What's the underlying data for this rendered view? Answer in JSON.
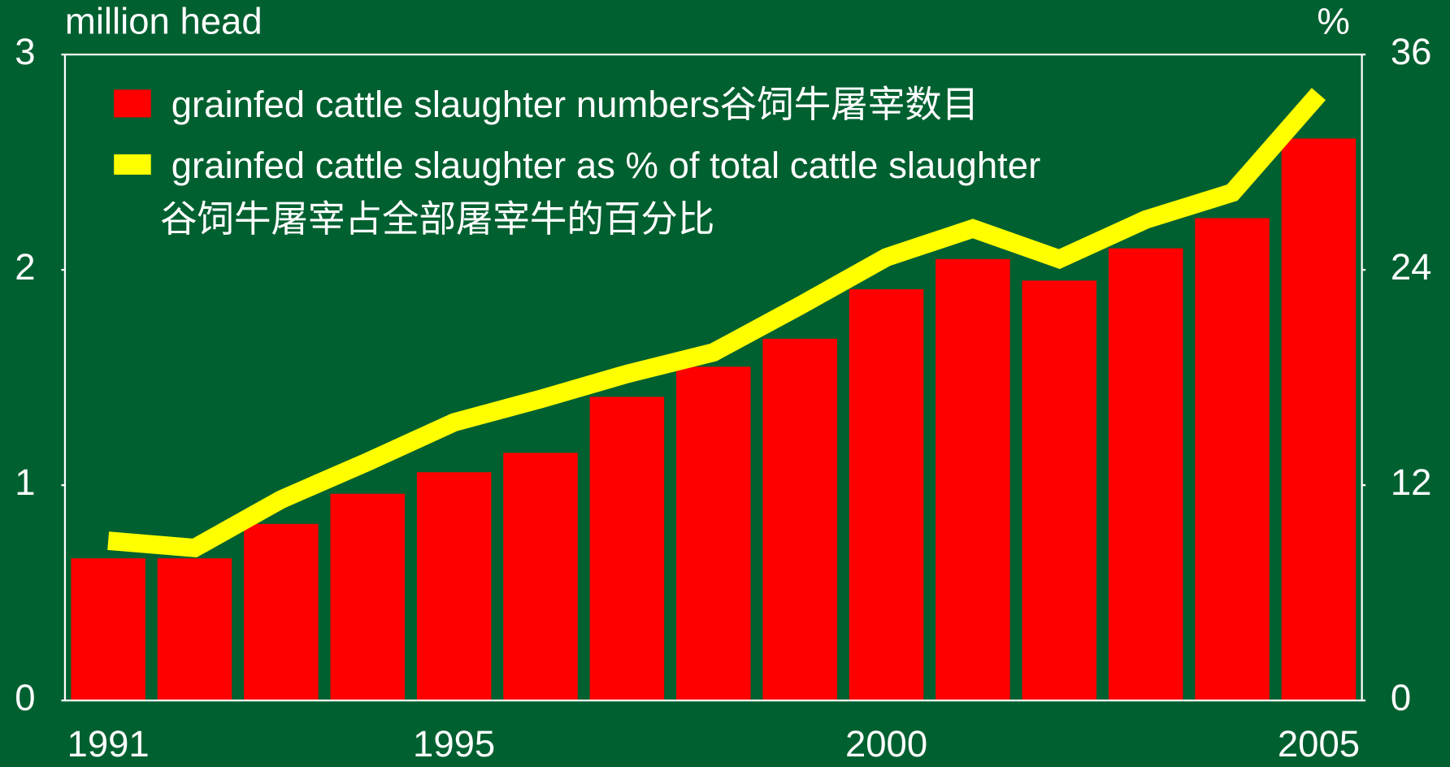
{
  "chart_data": {
    "type": "bar",
    "y_label": "million head",
    "y2_label": "%",
    "categories": [
      "1991",
      null,
      null,
      null,
      "1995",
      null,
      null,
      null,
      null,
      "2000",
      null,
      null,
      null,
      null,
      "2005"
    ],
    "series": [
      {
        "name": "grainfed cattle slaughter numbers谷饲牛屠宰数目",
        "type": "bar",
        "color": "#ff0000",
        "values": [
          0.66,
          0.66,
          0.82,
          0.96,
          1.06,
          1.15,
          1.41,
          1.55,
          1.68,
          1.91,
          2.05,
          1.95,
          2.1,
          2.24,
          2.61
        ]
      },
      {
        "name": "grainfed cattle slaughter as % of total cattle slaughter\n谷饲牛屠宰占全部屠宰牛的百分比",
        "type": "line",
        "axis": "y2",
        "color": "#ffff00",
        "values": [
          8.9,
          8.5,
          11.2,
          13.3,
          15.5,
          16.8,
          18.2,
          19.4,
          22.0,
          24.7,
          26.3,
          24.6,
          26.8,
          28.3,
          33.8
        ]
      }
    ],
    "ylim": [
      0,
      3
    ],
    "yticks": [
      0,
      1,
      2,
      3
    ],
    "y2lim": [
      0,
      36
    ],
    "y2ticks": [
      0,
      12,
      24,
      36
    ],
    "legend": "upper left"
  }
}
